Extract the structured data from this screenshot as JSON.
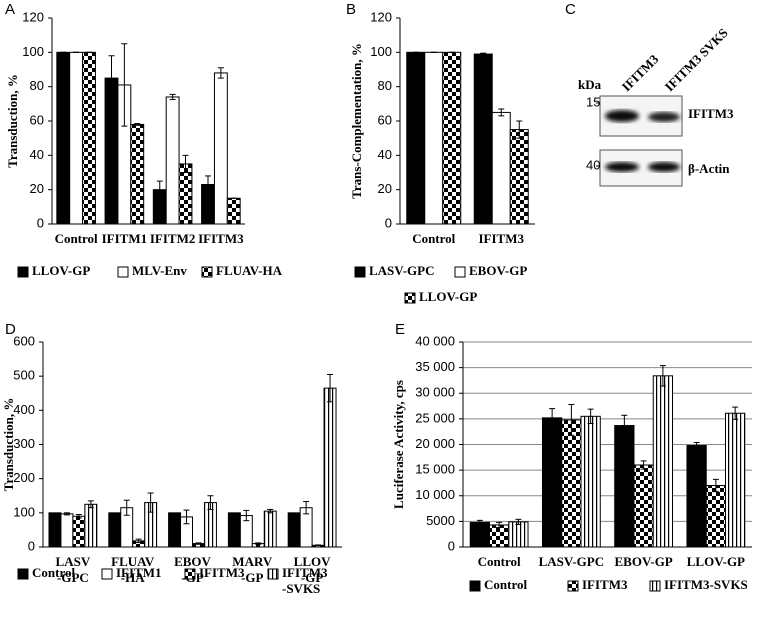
{
  "chart_data": [
    {
      "type": "bar",
      "panel": "A",
      "y_label": "Transduction, %",
      "categories": [
        "Control",
        "IFITM1",
        "IFITM2",
        "IFITM3"
      ],
      "ylim": [
        0,
        120
      ],
      "yticks": [
        0,
        20,
        40,
        60,
        80,
        100,
        120
      ],
      "grid": false,
      "series": [
        {
          "name": "LLOV-GP",
          "color": "#000000",
          "pattern": "solid",
          "values": [
            100,
            85,
            20,
            23
          ],
          "errors": [
            0,
            13,
            5,
            5
          ]
        },
        {
          "name": "MLV-Env",
          "color": "#ffffff",
          "pattern": "solid",
          "values": [
            100,
            81,
            74,
            88
          ],
          "errors": [
            0,
            24,
            1.5,
            3
          ]
        },
        {
          "name": "FLUAV-HA",
          "color": "#000000",
          "pattern": "checker",
          "values": [
            100,
            58,
            35,
            15
          ],
          "errors": [
            0,
            0.5,
            5,
            0
          ]
        }
      ]
    },
    {
      "type": "bar",
      "panel": "B",
      "y_label": "Trans-Complementation, %",
      "categories": [
        "Control",
        "IFITM3"
      ],
      "ylim": [
        0,
        120
      ],
      "yticks": [
        0,
        20,
        40,
        60,
        80,
        100,
        120
      ],
      "grid": false,
      "series": [
        {
          "name": "LASV-GPC",
          "color": "#000000",
          "pattern": "solid",
          "values": [
            100,
            99
          ],
          "errors": [
            0,
            0.5
          ]
        },
        {
          "name": "EBOV-GP",
          "color": "#ffffff",
          "pattern": "solid",
          "values": [
            100,
            65
          ],
          "errors": [
            0,
            2
          ]
        },
        {
          "name": "LLOV-GP",
          "color": "#000000",
          "pattern": "checker",
          "values": [
            100,
            55
          ],
          "errors": [
            0,
            5
          ]
        }
      ]
    },
    {
      "type": "bar",
      "panel": "D",
      "y_label": "Transduction, %",
      "categories": [
        "LASV -GPC",
        "FLUAV -HA",
        "EBOV -GP",
        "MARV -GP",
        "LLOV -GP"
      ],
      "ylim": [
        0,
        600
      ],
      "yticks": [
        0,
        100,
        200,
        300,
        400,
        500,
        600
      ],
      "grid": false,
      "series": [
        {
          "name": "Control",
          "color": "#000000",
          "pattern": "solid",
          "values": [
            100,
            100,
            100,
            100,
            100
          ]
        },
        {
          "name": "IFITM1",
          "color": "#ffffff",
          "pattern": "solid",
          "values": [
            97,
            115,
            88,
            92,
            115
          ],
          "errors": [
            3,
            22,
            20,
            15,
            18
          ]
        },
        {
          "name": "IFITM3",
          "color": "#000000",
          "pattern": "checker",
          "values": [
            90,
            18,
            10,
            10,
            5
          ],
          "errors": [
            5,
            5,
            2,
            2,
            1
          ]
        },
        {
          "name": "IFITM3 -SVKS",
          "color": "#000000",
          "pattern": "vstripe",
          "values": [
            125,
            130,
            130,
            105,
            465
          ],
          "errors": [
            10,
            28,
            20,
            5,
            40
          ]
        }
      ]
    },
    {
      "type": "bar",
      "panel": "E",
      "y_label": "Luciferase Activity, cps",
      "categories": [
        "Control",
        "LASV-GPC",
        "EBOV-GP",
        "LLOV-GP"
      ],
      "ylim": [
        0,
        40000
      ],
      "yticks": [
        0,
        {
          "value": 5000,
          "label": "5000"
        },
        {
          "value": 10000,
          "label": "10 000"
        },
        {
          "value": 15000,
          "label": "15 000"
        },
        {
          "value": 20000,
          "label": "20 000"
        },
        {
          "value": 25000,
          "label": "25 000"
        },
        {
          "value": 30000,
          "label": "30 000"
        },
        {
          "value": 35000,
          "label": "35 000"
        },
        {
          "value": 40000,
          "label": "40 000"
        }
      ],
      "grid": true,
      "series": [
        {
          "name": "Control",
          "color": "#000000",
          "pattern": "solid",
          "values": [
            4800,
            25200,
            23700,
            19800
          ],
          "errors": [
            400,
            1800,
            2000,
            600
          ]
        },
        {
          "name": "IFITM3",
          "color": "#000000",
          "pattern": "checker",
          "values": [
            4300,
            24800,
            16000,
            12000
          ],
          "errors": [
            500,
            3000,
            800,
            1200
          ]
        },
        {
          "name": "IFITM3-SVKS",
          "color": "#000000",
          "pattern": "vstripe",
          "values": [
            4900,
            25500,
            33400,
            26100
          ],
          "errors": [
            500,
            1400,
            2000,
            1200
          ]
        }
      ]
    }
  ],
  "blot": {
    "panel": "C",
    "kda_label": "kDa",
    "lanes": [
      "IFITM3",
      "IFITM3 SVKS"
    ],
    "bands": [
      {
        "marker": "15",
        "label": "IFITM3"
      },
      {
        "marker": "40",
        "label": "β-Actin"
      }
    ]
  }
}
